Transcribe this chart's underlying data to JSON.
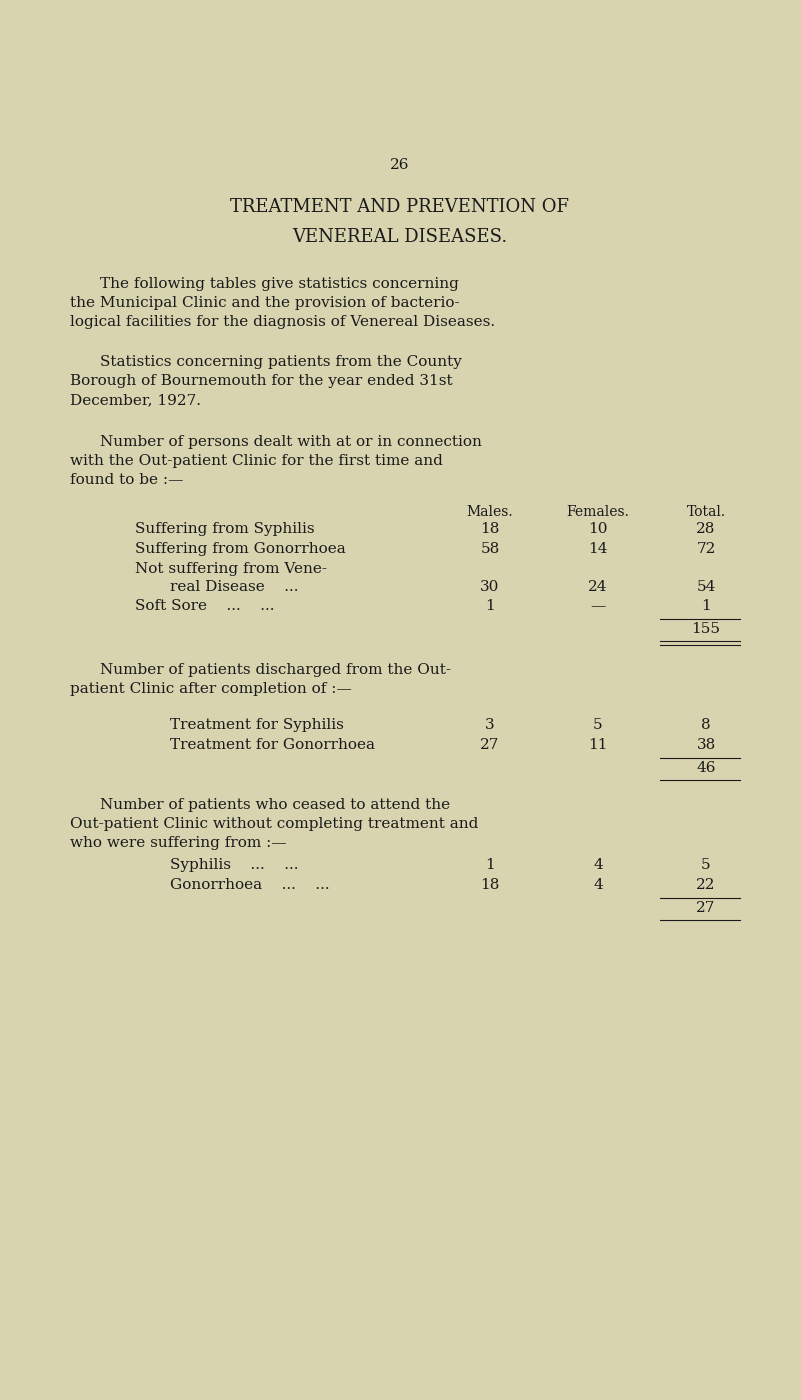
{
  "bg_color": "#d8d4b0",
  "text_color": "#1a1a1a",
  "page_number": "26",
  "title_line1": "TREATMENT AND PREVENTION OF",
  "title_line2": "VENEREAL DISEASES.",
  "col_headers": [
    "Males.",
    "Females.",
    "Total."
  ],
  "table1_total": "155",
  "table2_total": "46",
  "table3_total": "27",
  "font_family": "DejaVu Serif",
  "page_num_fontsize": 11,
  "title_fontsize": 13,
  "body_fontsize": 11,
  "table_fontsize": 11,
  "header_fontsize": 10
}
